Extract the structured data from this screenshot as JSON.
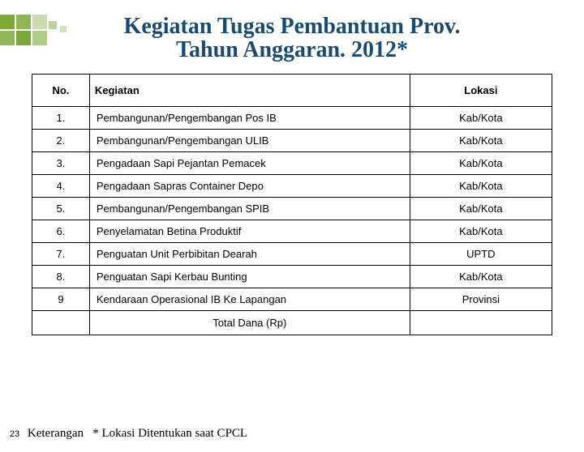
{
  "decor_color": "#7ba838",
  "title_color": "#1a4b6e",
  "title": {
    "line1": "Kegiatan Tugas Pembantuan Prov.",
    "line2": "Tahun Anggaran. 2012*"
  },
  "table": {
    "columns": [
      "No.",
      "Kegiatan",
      "Lokasi"
    ],
    "rows": [
      [
        "1.",
        "Pembangunan/Pengembangan Pos IB",
        "Kab/Kota"
      ],
      [
        "2.",
        "Pembangunan/Pengembangan ULIB",
        "Kab/Kota"
      ],
      [
        "3.",
        "Pengadaan Sapi Pejantan Pemacek",
        "Kab/Kota"
      ],
      [
        "4.",
        "Pengadaan Sapras Container Depo",
        "Kab/Kota"
      ],
      [
        "5.",
        "Pembangunan/Pengembangan SPIB",
        "Kab/Kota"
      ],
      [
        "6.",
        "Penyelamatan Betina Produktif",
        "Kab/Kota"
      ],
      [
        "7.",
        "Penguatan Unit Perbibitan Dearah",
        "UPTD"
      ],
      [
        "8.",
        "Penguatan Sapi Kerbau Bunting",
        "Kab/Kota"
      ],
      [
        "9",
        "Kendaraan Operasional IB Ke Lapangan",
        "Provinsi"
      ]
    ],
    "total_label": "Total Dana (Rp)"
  },
  "footer": {
    "page": "23",
    "keterangan_label": "Keterangan",
    "keterangan_text": "* Lokasi Ditentukan saat CPCL"
  }
}
